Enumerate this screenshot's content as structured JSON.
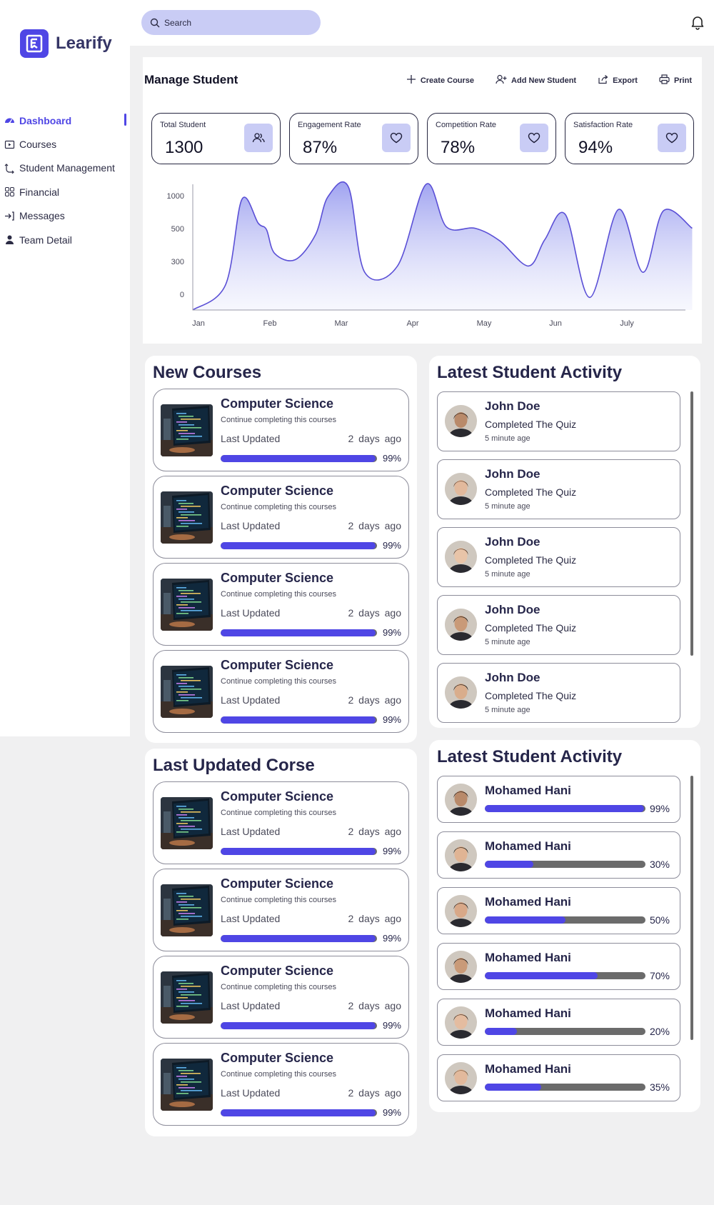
{
  "app": {
    "name": "Learify"
  },
  "colors": {
    "accent": "#4f46e5",
    "accent_light": "#c9ccf5",
    "track": "#6b6b6b"
  },
  "sidebar": {
    "items": [
      {
        "label": "Dashboard",
        "icon": "dashboard-icon",
        "active": true
      },
      {
        "label": "Courses",
        "icon": "courses-icon"
      },
      {
        "label": "Student Management",
        "icon": "student-management-icon"
      },
      {
        "label": "Financial",
        "icon": "financial-icon"
      },
      {
        "label": "Messages",
        "icon": "messages-icon"
      },
      {
        "label": "Team Detail",
        "icon": "team-icon"
      }
    ]
  },
  "topbar": {
    "search_placeholder": "Search"
  },
  "manage": {
    "title": "Manage Student",
    "actions": [
      {
        "label": "Create Course",
        "icon": "plus-icon"
      },
      {
        "label": "Add New Student",
        "icon": "add-user-icon"
      },
      {
        "label": "Export",
        "icon": "export-icon"
      },
      {
        "label": "Print",
        "icon": "print-icon"
      }
    ],
    "stats": [
      {
        "label": "Total Student",
        "value": "1300",
        "icon": "users-icon"
      },
      {
        "label": "Engagement Rate",
        "value": "87%",
        "icon": "heart-icon"
      },
      {
        "label": "Competition Rate",
        "value": "78%",
        "icon": "heart-icon"
      },
      {
        "label": "Satisfaction Rate",
        "value": "94%",
        "icon": "heart-icon"
      }
    ]
  },
  "chart_data": {
    "type": "area",
    "x_ticks": [
      "Jan",
      "Feb",
      "Mar",
      "Apr",
      "May",
      "Jun",
      "July"
    ],
    "y_ticks": [
      "1000",
      "500",
      "300",
      "0"
    ],
    "x": [
      0,
      0.4,
      0.6,
      0.8,
      0.9,
      1.0,
      1.25,
      1.5,
      1.65,
      1.9,
      2.1,
      2.5,
      2.85,
      3.1,
      3.45,
      3.75,
      4.1,
      4.3,
      4.55,
      4.85,
      5.2,
      5.5,
      5.75,
      6.1
    ],
    "y": [
      0.0,
      0.2,
      0.88,
      0.69,
      0.64,
      0.45,
      0.4,
      0.6,
      0.9,
      0.98,
      0.3,
      0.35,
      1.0,
      0.66,
      0.65,
      0.55,
      0.35,
      0.56,
      0.76,
      0.1,
      0.8,
      0.3,
      0.79,
      0.65
    ],
    "title": "",
    "xlabel": "",
    "ylabel": ""
  },
  "new_courses": {
    "title": "New Courses",
    "items": [
      {
        "name": "Computer Science",
        "subtitle": "Continue completing this courses",
        "updated_label": "Last Updated",
        "ago": "2 days ago",
        "progress": 99,
        "pct": "99%"
      },
      {
        "name": "Computer Science",
        "subtitle": "Continue completing this courses",
        "updated_label": "Last Updated",
        "ago": "2 days ago",
        "progress": 99,
        "pct": "99%"
      },
      {
        "name": "Computer Science",
        "subtitle": "Continue completing this courses",
        "updated_label": "Last Updated",
        "ago": "2 days ago",
        "progress": 99,
        "pct": "99%"
      },
      {
        "name": "Computer Science",
        "subtitle": "Continue completing this courses",
        "updated_label": "Last Updated",
        "ago": "2 days ago",
        "progress": 99,
        "pct": "99%"
      }
    ]
  },
  "last_updated": {
    "title": "Last Updated Corse",
    "items": [
      {
        "name": "Computer Science",
        "subtitle": "Continue completing this courses",
        "updated_label": "Last Updated",
        "ago": "2 days ago",
        "progress": 99,
        "pct": "99%"
      },
      {
        "name": "Computer Science",
        "subtitle": "Continue completing this courses",
        "updated_label": "Last Updated",
        "ago": "2 days ago",
        "progress": 99,
        "pct": "99%"
      },
      {
        "name": "Computer Science",
        "subtitle": "Continue completing this courses",
        "updated_label": "Last Updated",
        "ago": "2 days ago",
        "progress": 99,
        "pct": "99%"
      },
      {
        "name": "Computer Science",
        "subtitle": "Continue completing this courses",
        "updated_label": "Last Updated",
        "ago": "2 days ago",
        "progress": 99,
        "pct": "99%"
      }
    ]
  },
  "activity": {
    "title": "Latest Student Activity",
    "items": [
      {
        "name": "John Doe",
        "action": "Completed The Quiz",
        "time": "5 minute age",
        "skin": "#b98a6a",
        "hair": "#2a1c14"
      },
      {
        "name": "John Doe",
        "action": "Completed The Quiz",
        "time": "5 minute age",
        "skin": "#e2b99c",
        "hair": "#6a4630"
      },
      {
        "name": "John Doe",
        "action": "Completed The Quiz",
        "time": "5 minute age",
        "skin": "#e8c4a8",
        "hair": "#5a3a26"
      },
      {
        "name": "John Doe",
        "action": "Completed The Quiz",
        "time": "5 minute age",
        "skin": "#c99a78",
        "hair": "#1e1612"
      },
      {
        "name": "John Doe",
        "action": "Completed The Quiz",
        "time": "5 minute age",
        "skin": "#d9ad8c",
        "hair": "#1a1410"
      }
    ]
  },
  "progress": {
    "title": "Latest Student Activity",
    "items": [
      {
        "name": "Mohamed Hani",
        "progress": 99,
        "pct": "99%",
        "skin": "#b98a6a",
        "hair": "#2a1c14"
      },
      {
        "name": "Mohamed Hani",
        "progress": 30,
        "pct": "30%",
        "skin": "#e0b494",
        "hair": "#1e1a12"
      },
      {
        "name": "Mohamed Hani",
        "progress": 50,
        "pct": "50%",
        "skin": "#d8a888",
        "hair": "#1a1410"
      },
      {
        "name": "Mohamed Hani",
        "progress": 70,
        "pct": "70%",
        "skin": "#c99a78",
        "hair": "#1e1612"
      },
      {
        "name": "Mohamed Hani",
        "progress": 20,
        "pct": "20%",
        "skin": "#e4bca0",
        "hair": "#3a2618"
      },
      {
        "name": "Mohamed Hani",
        "progress": 35,
        "pct": "35%",
        "skin": "#e2b99c",
        "hair": "#7a5a3c"
      }
    ]
  }
}
